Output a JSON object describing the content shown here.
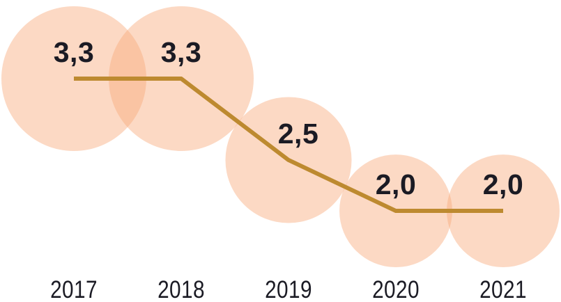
{
  "chart_data": {
    "type": "line",
    "subtype": "bubble-line",
    "title": "",
    "categories": [
      "2017",
      "2018",
      "2019",
      "2020",
      "2021"
    ],
    "values": [
      3.3,
      3.3,
      2.5,
      2.0,
      2.0
    ],
    "value_labels": [
      "3,3",
      "3,3",
      "2,5",
      "2,0",
      "2,0"
    ],
    "decimal_separator": ",",
    "bubble_area_proportional_to_value": true,
    "xlabel": "",
    "ylabel": "",
    "ylim": [
      2.0,
      3.3
    ],
    "layout_hints": {
      "grid": false,
      "legend": false,
      "axes_hidden": true,
      "value_labels_position": "above-line-inside-bubble",
      "category_labels_position": "bottom"
    },
    "colors": {
      "bubble_fill": "#F8AB7C",
      "bubble_opacity": 0.45,
      "line": "#BD8A30",
      "text": "#1B1B24",
      "background": "#FFFFFF"
    }
  }
}
